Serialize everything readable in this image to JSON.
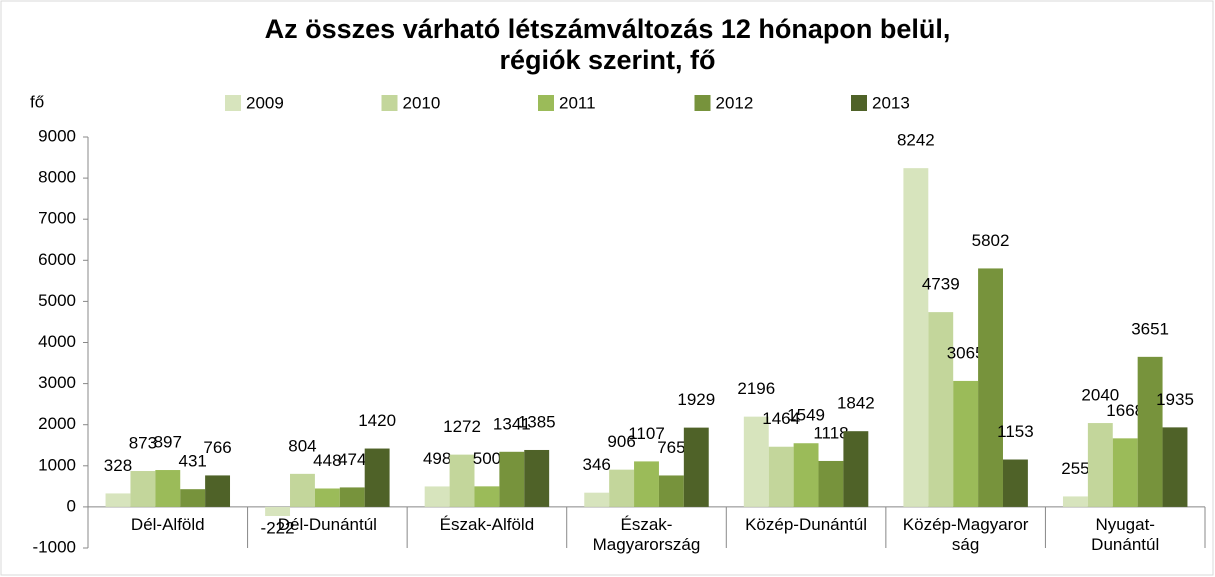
{
  "chart_data": {
    "type": "bar",
    "title": "Az összes  várható létszámváltozás 12 hónapon belül,\nrégiók szerint, fő",
    "y_label": "fő",
    "categories": [
      "Dél-Alföld",
      "Dél-Dunántúl",
      "Észak-Alföld",
      "Észak-\nMagyarország",
      "Közép-Dunántúl",
      "Közép-Magyaror\nság",
      "Nyugat-\nDunántúl"
    ],
    "series": [
      {
        "name": "2009",
        "color": "#d7e4bd",
        "values": [
          328,
          -222,
          498,
          346,
          2196,
          8242,
          255
        ]
      },
      {
        "name": "2010",
        "color": "#c3d69b",
        "values": [
          873,
          804,
          1272,
          906,
          1464,
          4739,
          2040
        ]
      },
      {
        "name": "2011",
        "color": "#9bbb59",
        "values": [
          897,
          448,
          500,
          1107,
          1549,
          3065,
          1668
        ]
      },
      {
        "name": "2012",
        "color": "#77933c",
        "values": [
          431,
          474,
          1341,
          765,
          1118,
          5802,
          3651
        ]
      },
      {
        "name": "2013",
        "color": "#4f6228",
        "values": [
          766,
          1420,
          1385,
          1929,
          1842,
          1153,
          1935
        ]
      }
    ],
    "ylim": [
      -1000,
      9000
    ],
    "yticks": [
      -1000,
      0,
      1000,
      2000,
      3000,
      4000,
      5000,
      6000,
      7000,
      8000,
      9000
    ],
    "legend": "top"
  }
}
